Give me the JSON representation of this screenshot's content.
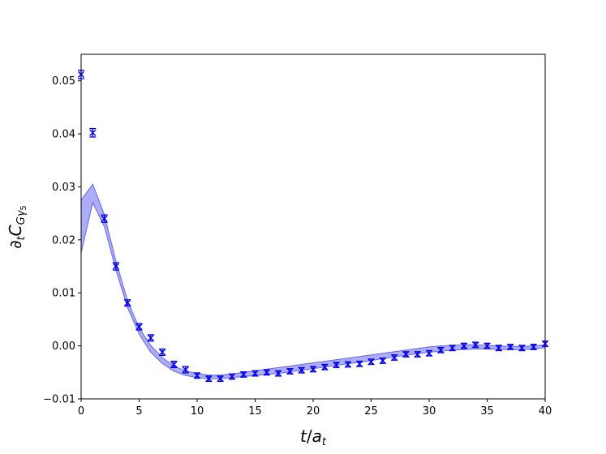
{
  "chart_data": {
    "type": "scatter",
    "xlabel": "t/a_t",
    "ylabel": "∂_t C_Gγ5",
    "xlim": [
      0,
      40
    ],
    "ylim": [
      -0.01,
      0.055
    ],
    "xticks": [
      0,
      5,
      10,
      15,
      20,
      25,
      30,
      35,
      40
    ],
    "xtick_labels": [
      "0",
      "5",
      "10",
      "15",
      "20",
      "25",
      "30",
      "35",
      "40"
    ],
    "yticks": [
      -0.01,
      0.0,
      0.01,
      0.02,
      0.03,
      0.04,
      0.05
    ],
    "ytick_labels": [
      "−0.01",
      "0.00",
      "0.01",
      "0.02",
      "0.03",
      "0.04",
      "0.05"
    ],
    "grid": false,
    "colors": {
      "points": "#0000ee",
      "band_fill": "#6a6af0",
      "band_line": "#3a3ae0"
    },
    "series": [
      {
        "kind": "points-with-errorbars",
        "marker": "x",
        "x": [
          0,
          1,
          2,
          3,
          4,
          5,
          6,
          7,
          8,
          9,
          10,
          11,
          12,
          13,
          14,
          15,
          16,
          17,
          18,
          19,
          20,
          21,
          22,
          23,
          24,
          25,
          26,
          27,
          28,
          29,
          30,
          31,
          32,
          33,
          34,
          35,
          36,
          37,
          38,
          39,
          40
        ],
        "y": [
          0.0512,
          0.0402,
          0.024,
          0.015,
          0.0081,
          0.0036,
          0.0015,
          -0.0012,
          -0.0035,
          -0.0045,
          -0.0056,
          -0.0062,
          -0.0062,
          -0.0058,
          -0.0054,
          -0.0052,
          -0.005,
          -0.0052,
          -0.0048,
          -0.0046,
          -0.0044,
          -0.004,
          -0.0036,
          -0.0035,
          -0.0034,
          -0.003,
          -0.0028,
          -0.0022,
          -0.0016,
          -0.0016,
          -0.0014,
          -0.0008,
          -0.0004,
          0.0,
          0.0002,
          0.0,
          -0.0004,
          -0.0002,
          -0.0004,
          -0.0002,
          0.0004
        ],
        "err": [
          0.0008,
          0.0008,
          0.0007,
          0.0007,
          0.0006,
          0.0006,
          0.0006,
          0.0006,
          0.0006,
          0.0006,
          0.0005,
          0.0005,
          0.0005,
          0.0005,
          0.0005,
          0.0005,
          0.0005,
          0.0005,
          0.0005,
          0.0005,
          0.0005,
          0.0005,
          0.0005,
          0.0005,
          0.0005,
          0.0005,
          0.0005,
          0.0005,
          0.0005,
          0.0005,
          0.0005,
          0.0005,
          0.0005,
          0.0005,
          0.0005,
          0.0005,
          0.0005,
          0.0005,
          0.0005,
          0.0005,
          0.0005
        ]
      },
      {
        "kind": "fit-band",
        "x": [
          0,
          1,
          2,
          3,
          4,
          5,
          6,
          7,
          8,
          9,
          10,
          11,
          12,
          13,
          14,
          15,
          16,
          17,
          18,
          19,
          20,
          21,
          22,
          23,
          24,
          25,
          26,
          27,
          28,
          29,
          30,
          31,
          32,
          33,
          34,
          35,
          36,
          37,
          38,
          39,
          40
        ],
        "lower": [
          0.0175,
          0.027,
          0.0225,
          0.0143,
          0.0072,
          0.0022,
          -0.0012,
          -0.0033,
          -0.0048,
          -0.0056,
          -0.006,
          -0.0062,
          -0.0062,
          -0.006,
          -0.0058,
          -0.0056,
          -0.0054,
          -0.0052,
          -0.0049,
          -0.0046,
          -0.0043,
          -0.004,
          -0.0037,
          -0.0034,
          -0.0031,
          -0.0028,
          -0.0024,
          -0.0021,
          -0.0018,
          -0.0015,
          -0.0012,
          -0.001,
          -0.0008,
          -0.0007,
          -0.0006,
          -0.0006,
          -0.0007,
          -0.0007,
          -0.0007,
          -0.0006,
          -0.0004
        ],
        "upper": [
          0.0275,
          0.0305,
          0.0248,
          0.016,
          0.0086,
          0.0034,
          0.0001,
          -0.0022,
          -0.0038,
          -0.0047,
          -0.0052,
          -0.0055,
          -0.0055,
          -0.0053,
          -0.005,
          -0.0047,
          -0.0044,
          -0.0041,
          -0.0038,
          -0.0035,
          -0.0032,
          -0.0029,
          -0.0026,
          -0.0023,
          -0.002,
          -0.0017,
          -0.0014,
          -0.0011,
          -0.0008,
          -0.0005,
          -0.0002,
          0.0,
          0.0001,
          0.0002,
          0.0002,
          0.0001,
          0.0,
          -0.0001,
          -0.0001,
          0.0,
          0.0002
        ]
      }
    ]
  }
}
